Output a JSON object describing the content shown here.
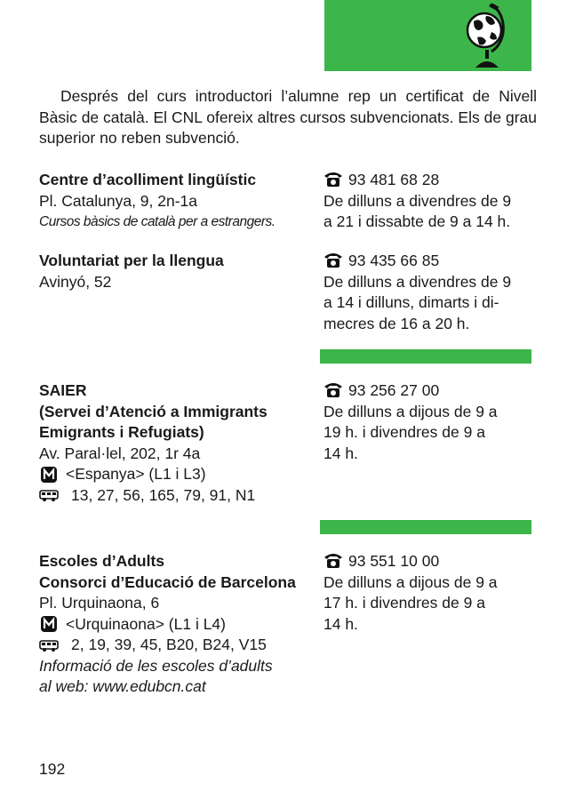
{
  "intro": "Després del curs introductori l’alumne rep un certificat de Nivell Bàsic de català. El CNL ofereix altres cursos subvencionats. Els de grau superior no reben subvenció.",
  "entries": [
    {
      "name": "Centre d’acolliment lingüístic",
      "address": "Pl. Catalunya, 9, 2n-1a",
      "note": "Cursos bàsics de català per a estrangers.",
      "phone": "93 481 68 28",
      "hours": [
        "De dilluns a divendres de 9",
        "a 21 i dissabte de 9 a 14 h."
      ]
    },
    {
      "name": "Voluntariat per la llengua",
      "address": "Avinyó, 52",
      "phone": "93 435 66 85",
      "hours": [
        "De dilluns a divendres de 9",
        "a 14 i dilluns, dimarts i di-",
        "mecres de 16 a 20 h."
      ]
    },
    {
      "name_lines": [
        "SAIER",
        "(Servei d’Atenció a Immigrants",
        "Emigrants i Refugiats)"
      ],
      "address": "Av. Paral·lel, 202, 1r 4a",
      "metro": "<Espanya> (L1 i L3)",
      "bus": "13, 27, 56, 165, 79, 91, N1",
      "phone": "93 256 27 00",
      "hours": [
        "De dilluns a dijous de 9 a",
        "19 h. i divendres de 9 a",
        "14 h."
      ]
    },
    {
      "name_lines": [
        "Escoles d’Adults",
        "Consorci d’Educació de Barcelona"
      ],
      "address": "Pl. Urquinaona, 6",
      "metro": "<Urquinaona> (L1 i L4)",
      "bus": "2, 19, 39, 45, B20, B24, V15",
      "info_lines": [
        "Informació de les escoles d’adults",
        "al web: www.edubcn.cat"
      ],
      "phone": "93 551 10 00",
      "hours": [
        "De dilluns a dijous de 9 a",
        "17 h. i divendres de 9 a",
        "14 h."
      ]
    }
  ],
  "page_number": "192",
  "colors": {
    "accent_green": "#3cb64a"
  },
  "icons": [
    "globe-icon",
    "telephone-icon",
    "metro-icon",
    "bus-icon"
  ]
}
